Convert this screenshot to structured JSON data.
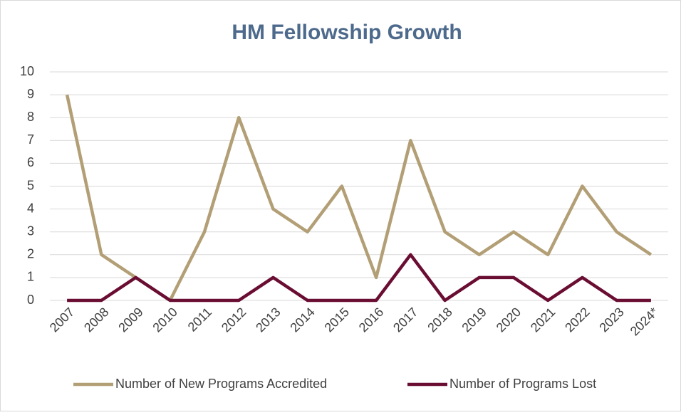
{
  "chart_data": {
    "type": "line",
    "title": "HM Fellowship Growth",
    "categories": [
      "2007",
      "2008",
      "2009",
      "2010",
      "2011",
      "2012",
      "2013",
      "2014",
      "2015",
      "2016",
      "2017",
      "2018",
      "2019",
      "2020",
      "2021",
      "2022",
      "2023",
      "2024*"
    ],
    "series": [
      {
        "name": "Number of New Programs Accredited",
        "color": "#b39f76",
        "values": [
          9,
          2,
          1,
          0,
          3,
          8,
          4,
          3,
          5,
          1,
          7,
          3,
          2,
          3,
          2,
          5,
          3,
          2
        ]
      },
      {
        "name": "Number of Programs Lost",
        "color": "#6a0d32",
        "values": [
          0,
          0,
          1,
          0,
          0,
          0,
          1,
          0,
          0,
          0,
          2,
          0,
          1,
          1,
          0,
          1,
          0,
          0
        ]
      }
    ],
    "ylim": [
      0,
      10
    ],
    "yticks": [
      0,
      1,
      2,
      3,
      4,
      5,
      6,
      7,
      8,
      9,
      10
    ],
    "grid": true,
    "legend": "bottom"
  }
}
